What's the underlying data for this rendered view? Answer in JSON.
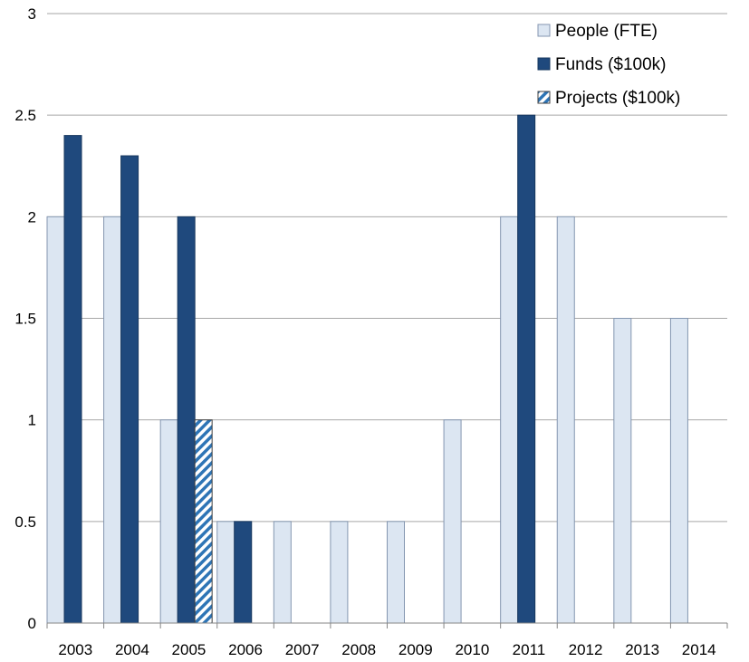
{
  "chart_data": {
    "type": "bar",
    "categories": [
      "2003",
      "2004",
      "2005",
      "2006",
      "2007",
      "2008",
      "2009",
      "2010",
      "2011",
      "2012",
      "2013",
      "2014"
    ],
    "series": [
      {
        "name": "People (FTE)",
        "color": "#dce6f2",
        "pattern": "solid",
        "values": [
          2,
          2,
          1,
          0.5,
          0.5,
          0.5,
          0.5,
          1,
          2,
          2,
          1.5,
          1.5
        ]
      },
      {
        "name": "Funds ($100k)",
        "color": "#1f497d",
        "pattern": "solid",
        "values": [
          2.4,
          2.3,
          2,
          0.5,
          null,
          null,
          null,
          null,
          2.5,
          null,
          null,
          null
        ]
      },
      {
        "name": "Projects ($100k)",
        "color": "#2e75b6",
        "pattern": "diagonal-stripes",
        "values": [
          null,
          null,
          1,
          null,
          null,
          null,
          null,
          null,
          null,
          null,
          null,
          null
        ]
      }
    ],
    "y_ticks": [
      "0",
      "0.5",
      "1",
      "1.5",
      "2",
      "2.5",
      "3"
    ],
    "ylim": [
      0,
      3
    ],
    "grid": "horizontal",
    "legend_position": "top-right"
  }
}
